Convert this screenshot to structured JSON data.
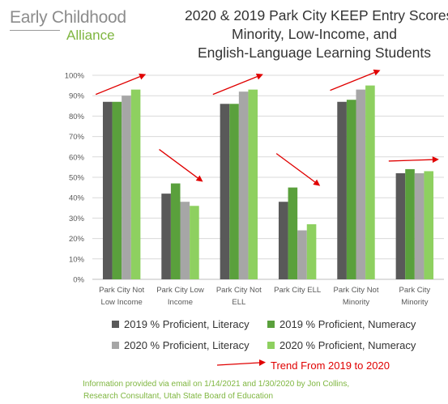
{
  "logo": {
    "line1": "Early Childhood",
    "line2": "Alliance"
  },
  "title_lines": [
    "2020 & 2019 Park City KEEP Entry Scores",
    "Minority, Low-Income, and",
    "English-Language Learning Students"
  ],
  "legend": {
    "trend_label": "Trend From 2019 to 2020"
  },
  "source_lines": [
    "Information provided via email on 1/14/2021 and 1/30/2020 by Jon Collins,",
    "Research Consultant, Utah State Board of Education"
  ],
  "colors": {
    "s2019_literacy": "#595959",
    "s2019_numeracy": "#5aa03c",
    "s2020_literacy": "#a6a6a6",
    "s2020_numeracy": "#8ed060",
    "trend_arrow": "#e00000",
    "grid": "#d9d9d9"
  },
  "chart_data": {
    "type": "bar",
    "title": "2020 & 2019 Park City KEEP Entry Scores Minority, Low-Income, and English-Language Learning Students",
    "categories": [
      [
        "Park City Not",
        "Low Income"
      ],
      [
        "Park City Low",
        "Income"
      ],
      [
        "Park City Not",
        "ELL"
      ],
      [
        "Park City ELL"
      ],
      [
        "Park City Not",
        "Minority"
      ],
      [
        "Park City",
        "Minority"
      ]
    ],
    "series": [
      {
        "name": "2019 % Proficient, Literacy",
        "values": [
          87,
          42,
          86,
          38,
          87,
          52
        ]
      },
      {
        "name": "2019 % Proficient, Numeracy",
        "values": [
          87,
          47,
          86,
          45,
          88,
          54
        ]
      },
      {
        "name": "2020 % Proficient, Literacy",
        "values": [
          90,
          38,
          92,
          24,
          93,
          52
        ]
      },
      {
        "name": "2020 % Proficient, Numeracy",
        "values": [
          93,
          36,
          93,
          27,
          95,
          53
        ]
      }
    ],
    "ylim": [
      0,
      100
    ],
    "yticks": [
      "0%",
      "10%",
      "20%",
      "30%",
      "40%",
      "50%",
      "60%",
      "70%",
      "80%",
      "90%",
      "100%"
    ],
    "grid": true,
    "legend_position": "bottom",
    "trend_arrows": [
      "up",
      "down",
      "up",
      "down",
      "up",
      "flat"
    ]
  }
}
